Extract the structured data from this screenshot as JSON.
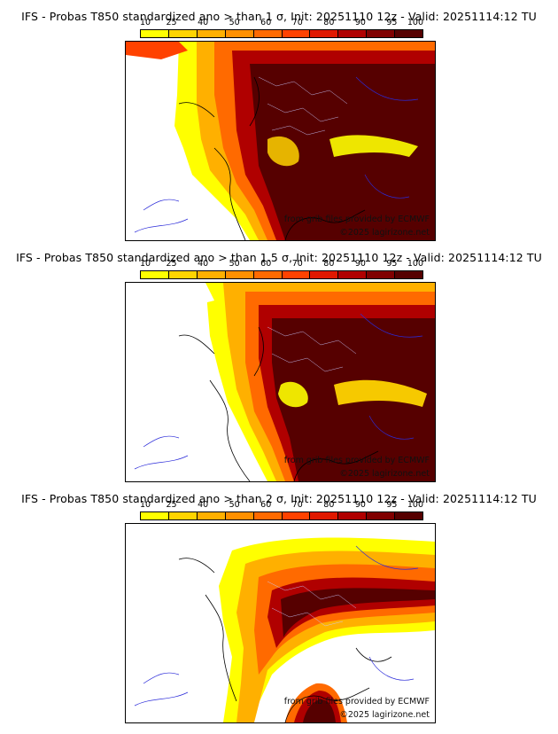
{
  "colorbar": {
    "ticks": [
      "10",
      "25",
      "40",
      "50",
      "60",
      "70",
      "80",
      "90",
      "95",
      "100"
    ],
    "colors": [
      "#ffff00",
      "#ffd400",
      "#ffb000",
      "#ff9000",
      "#ff6a00",
      "#ff4200",
      "#e01800",
      "#b00000",
      "#800000",
      "#560000"
    ]
  },
  "panels": [
    {
      "title": "IFS - Probas T850  standardized ano > than 1 σ, Init: 20251110 12z - Valid: 20251114:12 TU",
      "credit_line1": "from grib files provided by ECMWF",
      "credit_line2": "©2025 lagirizone.net"
    },
    {
      "title": "IFS - Probas T850  standardized ano > than 1.5 σ, Init: 20251110 12z - Valid: 20251114:12 TU",
      "credit_line1": "from grib files provided by ECMWF",
      "credit_line2": "©2025 lagirizone.net"
    },
    {
      "title": "IFS - Probas T850  standardized ano > than 2 σ, Init: 20251110 12z - Valid: 20251114:12 TU",
      "credit_line1": "from grib files provided by ECMWF",
      "credit_line2": "©2025 lagirizone.net"
    }
  ]
}
